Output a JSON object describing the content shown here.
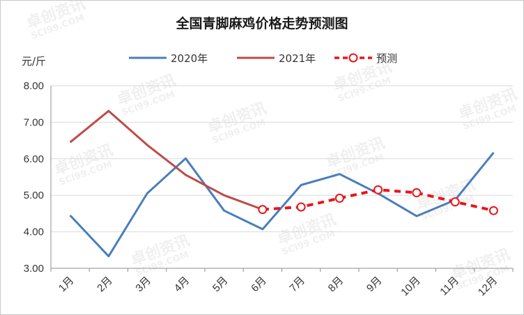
{
  "chart_data": {
    "type": "line",
    "title": "全国青脚麻鸡价格走势预测图",
    "ylabel": "元/斤",
    "xlabel": "",
    "ylim": [
      3.0,
      8.0
    ],
    "yticks": [
      "3.00",
      "4.00",
      "5.00",
      "6.00",
      "7.00",
      "8.00"
    ],
    "categories": [
      "1月",
      "2月",
      "3月",
      "4月",
      "5月",
      "6月",
      "7月",
      "8月",
      "9月",
      "10月",
      "11月",
      "12月"
    ],
    "legend_position": "top",
    "grid": "horizontal",
    "series": [
      {
        "name": "2020年",
        "color": "#4a7ebb",
        "style": "solid",
        "values": [
          4.45,
          3.33,
          5.05,
          6.01,
          4.58,
          4.07,
          5.28,
          5.58,
          5.05,
          4.43,
          4.87,
          6.17
        ]
      },
      {
        "name": "2021年",
        "color": "#be4b48",
        "style": "solid",
        "values": [
          6.45,
          7.31,
          6.38,
          5.56,
          5.0,
          4.61,
          null,
          null,
          null,
          null,
          null,
          null
        ]
      },
      {
        "name": "预测",
        "color": "#e8141a",
        "style": "dashed-circle-markers",
        "values": [
          null,
          null,
          null,
          null,
          null,
          4.61,
          4.68,
          4.92,
          5.15,
          5.07,
          4.82,
          4.58
        ]
      }
    ]
  },
  "watermark": "卓创资讯 SCI99.COM"
}
